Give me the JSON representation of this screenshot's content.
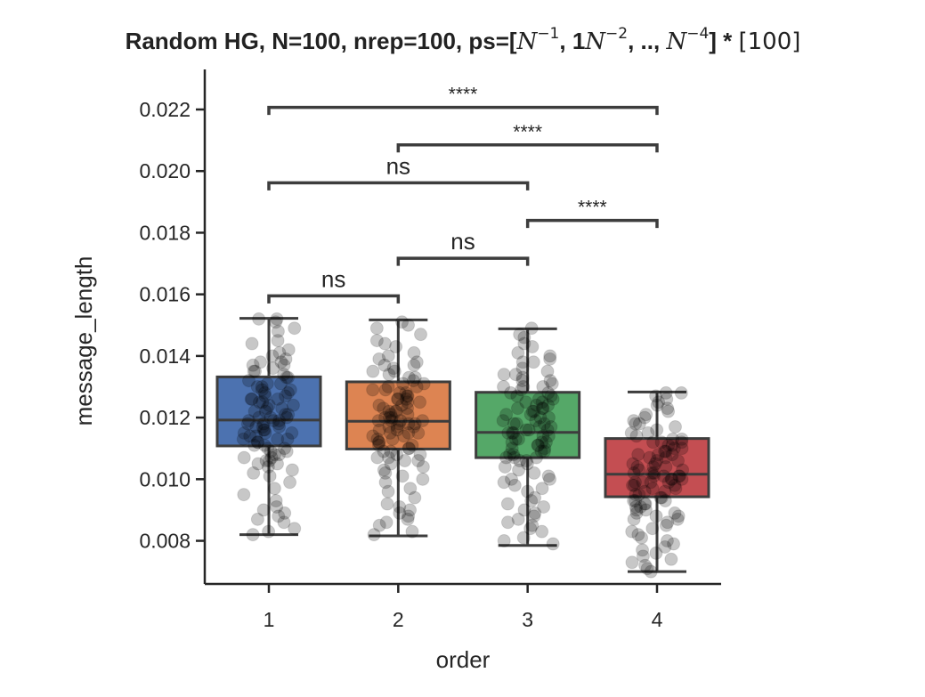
{
  "chart_data": {
    "type": "box",
    "title": {
      "prefix": "Random HG, N=100, nrep=100, ps=[",
      "part_n1": "N",
      "sup_n1": "−1",
      "sep1": ", 1",
      "part_n2": "N",
      "sup_n2": "−2",
      "sep2": ", ..,  ",
      "part_n4": "N",
      "sup_n4": "−4",
      "suffix": "] * ",
      "bracket": "[100]"
    },
    "xlabel": "order",
    "ylabel": "message_length",
    "categories": [
      "1",
      "2",
      "3",
      "4"
    ],
    "ylim": [
      0.0066,
      0.0233
    ],
    "yticks": [
      0.008,
      0.01,
      0.012,
      0.014,
      0.016,
      0.018,
      0.02,
      0.022
    ],
    "ytick_labels": [
      "0.008",
      "0.010",
      "0.012",
      "0.014",
      "0.016",
      "0.018",
      "0.020",
      "0.022"
    ],
    "grid": false,
    "boxes": [
      {
        "category": "1",
        "color": "#4C72B0",
        "whislo": 0.0082,
        "q1": 0.01108,
        "med": 0.01192,
        "q3": 0.01332,
        "whishi": 0.01522
      },
      {
        "category": "2",
        "color": "#DD8452",
        "whislo": 0.00816,
        "q1": 0.01098,
        "med": 0.01188,
        "q3": 0.01316,
        "whishi": 0.01517
      },
      {
        "category": "3",
        "color": "#55A868",
        "whislo": 0.00785,
        "q1": 0.0107,
        "med": 0.01152,
        "q3": 0.01282,
        "whishi": 0.01488
      },
      {
        "category": "4",
        "color": "#C44E52",
        "whislo": 0.007,
        "q1": 0.00943,
        "med": 0.01016,
        "q3": 0.01132,
        "whishi": 0.01283
      }
    ],
    "points": [
      [
        0.0152,
        0.0152,
        0.0151,
        0.0149,
        0.0148,
        0.0145,
        0.0144,
        0.0142,
        0.0141,
        0.0139,
        0.0138,
        0.0138,
        0.0137,
        0.0137,
        0.0136,
        0.0135,
        0.0135,
        0.0134,
        0.0133,
        0.0133,
        0.0132,
        0.0131,
        0.0131,
        0.013,
        0.013,
        0.0129,
        0.0129,
        0.0128,
        0.0128,
        0.0127,
        0.0127,
        0.0126,
        0.0126,
        0.0125,
        0.0125,
        0.0124,
        0.0124,
        0.0123,
        0.0123,
        0.0122,
        0.0122,
        0.0121,
        0.0121,
        0.012,
        0.012,
        0.012,
        0.0119,
        0.0119,
        0.0119,
        0.0118,
        0.0118,
        0.0118,
        0.0117,
        0.0117,
        0.0117,
        0.0116,
        0.0116,
        0.0115,
        0.0115,
        0.0115,
        0.0114,
        0.0114,
        0.0113,
        0.0113,
        0.0112,
        0.0112,
        0.0111,
        0.0111,
        0.011,
        0.011,
        0.0109,
        0.0109,
        0.0108,
        0.0108,
        0.0107,
        0.0107,
        0.0106,
        0.0106,
        0.0105,
        0.0105,
        0.0104,
        0.0103,
        0.0102,
        0.0101,
        0.0099,
        0.0097,
        0.0095,
        0.0093,
        0.0091,
        0.009,
        0.0089,
        0.0088,
        0.0087,
        0.0086,
        0.0084,
        0.0083,
        0.0082,
        0.014,
        0.0126,
        0.0113
      ],
      [
        0.0151,
        0.015,
        0.0149,
        0.0147,
        0.0145,
        0.0144,
        0.0143,
        0.0141,
        0.014,
        0.0138,
        0.0137,
        0.0137,
        0.0136,
        0.0135,
        0.0135,
        0.0134,
        0.0133,
        0.0133,
        0.0132,
        0.0131,
        0.0131,
        0.013,
        0.013,
        0.0129,
        0.0129,
        0.0128,
        0.0128,
        0.0127,
        0.0127,
        0.0126,
        0.0126,
        0.0125,
        0.0125,
        0.0124,
        0.0124,
        0.0123,
        0.0123,
        0.0122,
        0.0122,
        0.0121,
        0.0121,
        0.012,
        0.012,
        0.012,
        0.0119,
        0.0119,
        0.0119,
        0.0118,
        0.0118,
        0.0118,
        0.0117,
        0.0117,
        0.0117,
        0.0116,
        0.0116,
        0.0115,
        0.0115,
        0.0114,
        0.0114,
        0.0113,
        0.0113,
        0.0112,
        0.0112,
        0.0111,
        0.0111,
        0.011,
        0.011,
        0.0109,
        0.0109,
        0.0108,
        0.0108,
        0.0107,
        0.0107,
        0.0106,
        0.0105,
        0.0104,
        0.0103,
        0.0102,
        0.0101,
        0.01,
        0.0099,
        0.0097,
        0.0096,
        0.0094,
        0.0092,
        0.0091,
        0.009,
        0.0089,
        0.0088,
        0.0087,
        0.0086,
        0.0085,
        0.0083,
        0.0082,
        0.0139,
        0.0126,
        0.0122,
        0.0119,
        0.0115,
        0.0106
      ],
      [
        0.0149,
        0.0147,
        0.0146,
        0.0144,
        0.0143,
        0.0141,
        0.014,
        0.0139,
        0.0138,
        0.0136,
        0.0135,
        0.0134,
        0.0134,
        0.0133,
        0.0132,
        0.0132,
        0.0131,
        0.013,
        0.013,
        0.0129,
        0.0128,
        0.0128,
        0.0127,
        0.0127,
        0.0126,
        0.0126,
        0.0125,
        0.0125,
        0.0124,
        0.0124,
        0.0123,
        0.0123,
        0.0122,
        0.0122,
        0.0121,
        0.0121,
        0.012,
        0.012,
        0.0119,
        0.0119,
        0.0118,
        0.0118,
        0.0117,
        0.0117,
        0.0116,
        0.0116,
        0.0115,
        0.0115,
        0.0115,
        0.0114,
        0.0114,
        0.0113,
        0.0113,
        0.0112,
        0.0112,
        0.0111,
        0.0111,
        0.011,
        0.011,
        0.0109,
        0.0109,
        0.0108,
        0.0108,
        0.0107,
        0.0107,
        0.0106,
        0.0106,
        0.0105,
        0.0104,
        0.0103,
        0.0102,
        0.0101,
        0.01,
        0.0099,
        0.0098,
        0.0097,
        0.0096,
        0.0094,
        0.0093,
        0.0092,
        0.0091,
        0.009,
        0.0089,
        0.0088,
        0.0087,
        0.0086,
        0.0085,
        0.0084,
        0.0083,
        0.0081,
        0.008,
        0.0079,
        0.013,
        0.0123,
        0.0118,
        0.0112,
        0.0107,
        0.01,
        0.0138,
        0.0116
      ],
      [
        0.0128,
        0.0128,
        0.0127,
        0.0126,
        0.0125,
        0.0124,
        0.0123,
        0.0122,
        0.0121,
        0.012,
        0.0119,
        0.0118,
        0.0117,
        0.0116,
        0.0115,
        0.0115,
        0.0114,
        0.0113,
        0.0113,
        0.0112,
        0.0112,
        0.0111,
        0.0111,
        0.011,
        0.011,
        0.0109,
        0.0109,
        0.0108,
        0.0108,
        0.0107,
        0.0107,
        0.0106,
        0.0106,
        0.0105,
        0.0105,
        0.0104,
        0.0104,
        0.0103,
        0.0103,
        0.0102,
        0.0102,
        0.0102,
        0.0101,
        0.0101,
        0.0101,
        0.01,
        0.01,
        0.01,
        0.0099,
        0.0099,
        0.0099,
        0.0098,
        0.0098,
        0.0098,
        0.0097,
        0.0097,
        0.0096,
        0.0096,
        0.0095,
        0.0095,
        0.0094,
        0.0094,
        0.0093,
        0.0093,
        0.0092,
        0.0092,
        0.0091,
        0.0091,
        0.009,
        0.009,
        0.0089,
        0.0089,
        0.0088,
        0.0088,
        0.0087,
        0.0086,
        0.0085,
        0.0084,
        0.0083,
        0.0082,
        0.0081,
        0.008,
        0.0079,
        0.0078,
        0.0077,
        0.0076,
        0.0075,
        0.0074,
        0.0073,
        0.0072,
        0.0071,
        0.007,
        0.0112,
        0.0104,
        0.0099,
        0.0093,
        0.0087,
        0.0118,
        0.0108,
        0.0101
      ]
    ],
    "annotations": [
      {
        "from": "1",
        "to": "2",
        "y": 0.01595,
        "label": "ns"
      },
      {
        "from": "2",
        "to": "3",
        "y": 0.01717,
        "label": "ns"
      },
      {
        "from": "3",
        "to": "4",
        "y": 0.0184,
        "label": "****"
      },
      {
        "from": "1",
        "to": "3",
        "y": 0.01962,
        "label": "ns"
      },
      {
        "from": "2",
        "to": "4",
        "y": 0.02085,
        "label": "****"
      },
      {
        "from": "1",
        "to": "4",
        "y": 0.02207,
        "label": "****"
      }
    ]
  }
}
